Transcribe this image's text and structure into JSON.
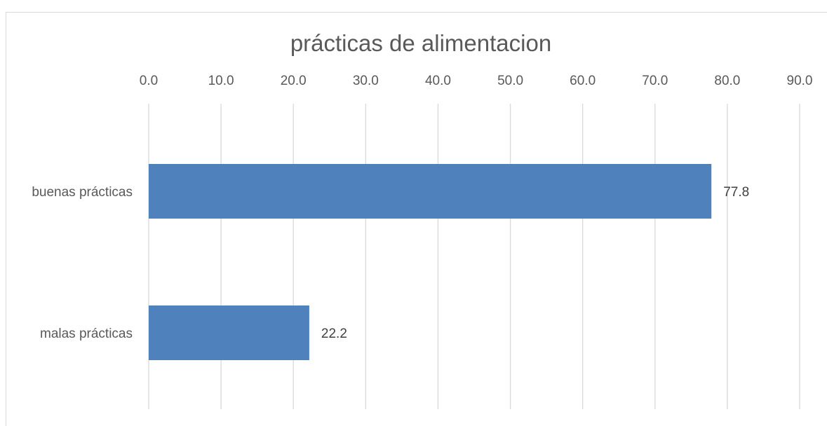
{
  "chart_data": {
    "type": "bar",
    "orientation": "horizontal",
    "title": "prácticas de alimentacion",
    "categories": [
      "buenas prácticas",
      "malas prácticas"
    ],
    "values": [
      77.8,
      22.2
    ],
    "value_labels": [
      "77.8",
      "22.2"
    ],
    "xlim": [
      0,
      90
    ],
    "x_ticks": [
      "0.0",
      "10.0",
      "20.0",
      "30.0",
      "40.0",
      "50.0",
      "60.0",
      "70.0",
      "80.0",
      "90.0"
    ],
    "x_tick_values": [
      0,
      10,
      20,
      30,
      40,
      50,
      60,
      70,
      80,
      90
    ],
    "x_axis_position": "top",
    "grid": true,
    "legend": "none",
    "bar_color": "#4f81bd",
    "xlabel": "",
    "ylabel": ""
  }
}
